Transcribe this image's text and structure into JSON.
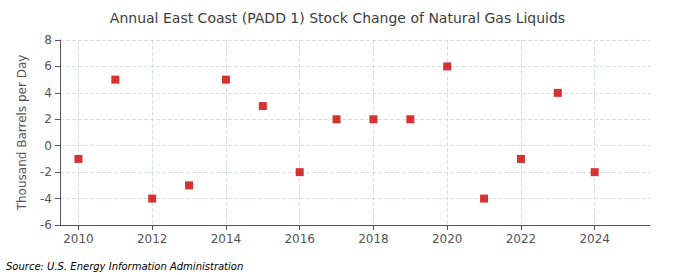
{
  "chart_data": {
    "type": "scatter",
    "title": "Annual East Coast (PADD 1) Stock Change of Natural Gas Liquids",
    "ylabel": "Thousand Barrels per Day",
    "annotations": [
      "Source: U.S. Energy Information Administration"
    ],
    "x": [
      2010,
      2011,
      2012,
      2013,
      2014,
      2015,
      2016,
      2017,
      2018,
      2019,
      2020,
      2021,
      2022,
      2023,
      2024
    ],
    "values": [
      -1,
      5,
      -4,
      -3,
      5,
      3,
      -2,
      2,
      2,
      2,
      6,
      -4,
      -1,
      4,
      -2
    ],
    "color": "#CC0000",
    "marker": "square",
    "xlim": [
      2009.5,
      2025.5
    ],
    "xticks": [
      2010,
      2012,
      2014,
      2016,
      2018,
      2020,
      2022,
      2024
    ],
    "ylim": [
      -6,
      8
    ],
    "yticks": [
      -6,
      -4,
      -2,
      0,
      2,
      4,
      6,
      8
    ],
    "grid": true
  }
}
